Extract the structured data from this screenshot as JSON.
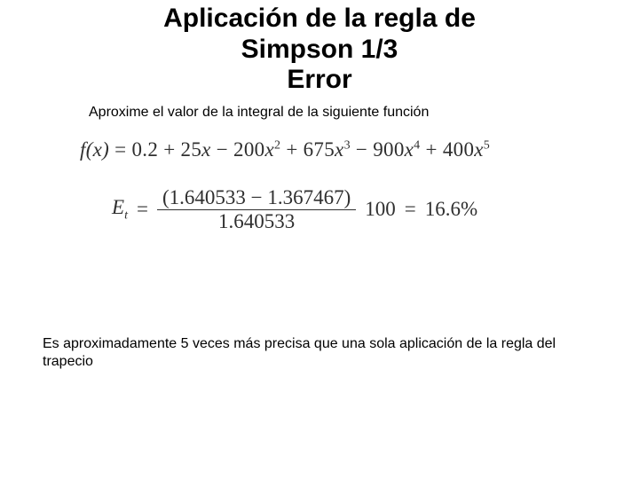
{
  "title": {
    "line1": "Aplicación de la regla de",
    "line2": "Simpson 1/3",
    "line3": "Error"
  },
  "subtitle": "Aproxime el valor de la integral de la siguiente función",
  "eq1": {
    "lhs": "f(x)",
    "eq": " = ",
    "rhs_terms": [
      "0.2",
      " + 25",
      "x",
      " − 200",
      "x",
      "2",
      " + 675",
      "x",
      "3",
      " − 900",
      "x",
      "4",
      " + 400",
      "x",
      "5"
    ]
  },
  "eq2": {
    "lhs": "E",
    "sub": "t",
    "eq1": " = ",
    "num_open": "(",
    "num_a": "1.640533",
    "num_minus": " − ",
    "num_b": "1.367467",
    "num_close": ")",
    "den": "1.640533",
    "times100": "100",
    "eq2": " = ",
    "result": "16.6%"
  },
  "conclusion": "Es aproximadamente 5 veces más precisa que una sola aplicación de la regla del trapecio",
  "colors": {
    "text": "#000000",
    "eq": "#2f2f2f",
    "bg": "#ffffff"
  },
  "fonts": {
    "title_pt": 30,
    "body_pt": 16,
    "eq_pt": 23
  }
}
